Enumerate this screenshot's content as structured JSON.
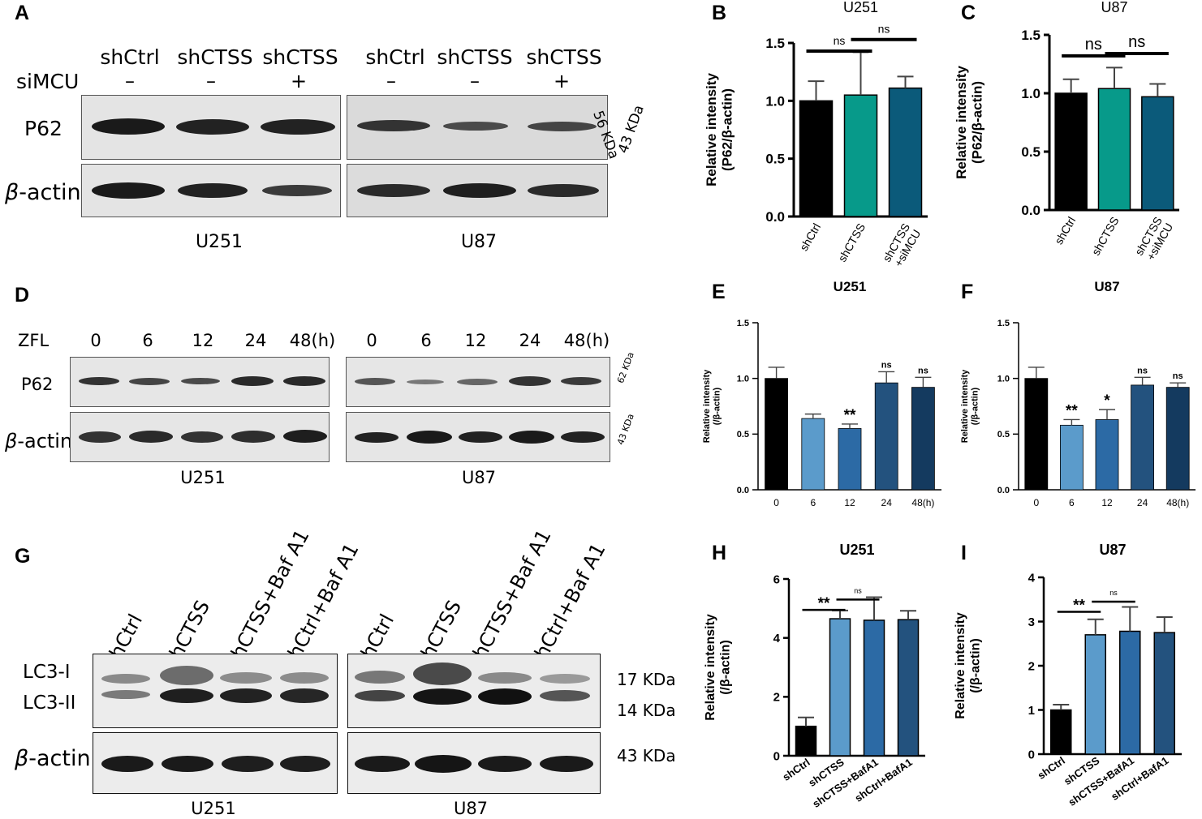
{
  "panel_labels": [
    "A",
    "B",
    "C",
    "D",
    "E",
    "F",
    "G",
    "H",
    "I"
  ],
  "blotA": {
    "lanes_u251": [
      "shCtrl",
      "shCTSS",
      "shCTSS"
    ],
    "lanes_u87": [
      "shCtrl",
      "shCTSS",
      "shCTSS"
    ],
    "simcu_label": "siMCU",
    "simcu_signs": [
      "–",
      "–",
      "+",
      "–",
      "–",
      "+"
    ],
    "row_labels": [
      "P62",
      "β-actin"
    ],
    "beta_symbol": "β",
    "beta_suffix": "-actin",
    "sizes": [
      "56 KDa",
      "43 KDa"
    ],
    "cell_lines": [
      "U251",
      "U87"
    ]
  },
  "blotD": {
    "row_label_zfl": "ZFL",
    "times_u251": [
      "0",
      "6",
      "12",
      "24",
      "48(h)"
    ],
    "times_u87": [
      "0",
      "6",
      "12",
      "24",
      "48(h)"
    ],
    "row_labels": [
      "P62",
      "β-actin"
    ],
    "beta_symbol": "β",
    "beta_suffix": "-actin",
    "sizes": [
      "62 KDa",
      "43 KDa"
    ],
    "cell_lines": [
      "U251",
      "U87"
    ]
  },
  "blotG": {
    "lanes_u251": [
      "shCtrl",
      "shCTSS",
      "shCTSS+Baf A1",
      "shCtrl+Baf A1"
    ],
    "lanes_u87": [
      "shCtrl",
      "shCTSS",
      "shCTSS+Baf A1",
      "shCtrl+Baf A1"
    ],
    "row_labels": [
      "LC3-I",
      "LC3-II"
    ],
    "beta_symbol": "β",
    "beta_suffix": "-actin",
    "sizes": [
      "17 KDa",
      "14 KDa",
      "43 KDa"
    ],
    "cell_lines": [
      "U251",
      "U87"
    ]
  },
  "colors": {
    "black": "#000000",
    "teal": "#079a8a",
    "darkteal": "#0b5a7a",
    "blue1": "#5b9bcb",
    "blue2": "#2c6aa5",
    "navy1": "#23527e",
    "navy2": "#143a5f",
    "blot_bg": "#e8e8e8"
  },
  "chart_data": [
    {
      "id": "B",
      "type": "bar",
      "title": "U251",
      "ylabel": [
        "Relative intensity",
        "(P62/β-actin)"
      ],
      "ylim": [
        0,
        1.5
      ],
      "yticks": [
        "0.0",
        "0.5",
        "1.0",
        "1.5"
      ],
      "categories": [
        "shCtrl",
        "shCTSS",
        "shCTSS +siMCU"
      ],
      "values": [
        1.0,
        1.05,
        1.11
      ],
      "errors": [
        0.17,
        0.37,
        0.1
      ],
      "bar_colors": [
        "#000000",
        "#079a8a",
        "#0b5a7a"
      ],
      "brackets": [
        {
          "from": 0,
          "to": 1,
          "label": "ns"
        },
        {
          "from": 1,
          "to": 2,
          "label": "ns"
        }
      ],
      "annotations": [
        "",
        "",
        ""
      ]
    },
    {
      "id": "C",
      "type": "bar",
      "title": "U87",
      "ylabel": [
        "Relative intensity",
        "(P62/β-actin)"
      ],
      "ylim": [
        0,
        1.5
      ],
      "yticks": [
        "0.0",
        "0.5",
        "1.0",
        "1.5"
      ],
      "categories": [
        "shCtrl",
        "shCTSS",
        "shCTSS +siMCU"
      ],
      "values": [
        1.0,
        1.04,
        0.97
      ],
      "errors": [
        0.12,
        0.18,
        0.11
      ],
      "bar_colors": [
        "#000000",
        "#079a8a",
        "#0b5a7a"
      ],
      "brackets": [
        {
          "from": 0,
          "to": 1,
          "label": "ns"
        },
        {
          "from": 1,
          "to": 2,
          "label": "ns"
        }
      ],
      "annotations": [
        "",
        "",
        ""
      ]
    },
    {
      "id": "E",
      "type": "bar",
      "title": "U251",
      "ylabel": [
        "Relative intensity",
        "(/β-actin)"
      ],
      "ylim": [
        0,
        1.5
      ],
      "yticks": [
        "0.0",
        "0.5",
        "1.0",
        "1.5"
      ],
      "categories": [
        "0",
        "6",
        "12",
        "24",
        "48(h)"
      ],
      "values": [
        1.0,
        0.64,
        0.55,
        0.96,
        0.92
      ],
      "errors": [
        0.1,
        0.04,
        0.04,
        0.1,
        0.09
      ],
      "bar_colors": [
        "#000000",
        "#5b9bcb",
        "#2c6aa5",
        "#23527e",
        "#143a5f"
      ],
      "brackets": [],
      "annotations": [
        "",
        "",
        "**",
        "ns",
        "ns"
      ]
    },
    {
      "id": "F",
      "type": "bar",
      "title": "U87",
      "ylabel": [
        "Relative intensity",
        "(/β-actin)"
      ],
      "ylim": [
        0,
        1.5
      ],
      "yticks": [
        "0.0",
        "0.5",
        "1.0",
        "1.5"
      ],
      "categories": [
        "0",
        "6",
        "12",
        "24",
        "48(h)"
      ],
      "values": [
        1.0,
        0.58,
        0.63,
        0.94,
        0.92
      ],
      "errors": [
        0.1,
        0.05,
        0.09,
        0.07,
        0.04
      ],
      "bar_colors": [
        "#000000",
        "#5b9bcb",
        "#2c6aa5",
        "#23527e",
        "#143a5f"
      ],
      "brackets": [],
      "annotations": [
        "",
        "**",
        "*",
        "ns",
        "ns"
      ]
    },
    {
      "id": "H",
      "type": "bar",
      "title": "U251",
      "ylabel": [
        "Relative intensity",
        "(/β-actin)"
      ],
      "ylim": [
        0,
        6
      ],
      "yticks": [
        "0",
        "2",
        "4",
        "6"
      ],
      "categories": [
        "shCtrl",
        "shCTSS",
        "shCTSS+BafA1",
        "shCtrl+BafA1"
      ],
      "values": [
        1.0,
        4.65,
        4.6,
        4.62
      ],
      "errors": [
        0.3,
        0.28,
        0.78,
        0.3
      ],
      "bar_colors": [
        "#000000",
        "#5b9bcb",
        "#2c6aa5",
        "#23527e"
      ],
      "brackets": [
        {
          "from": 0,
          "to": 1,
          "label": "**"
        },
        {
          "from": 1,
          "to": 2,
          "label": "ns"
        }
      ],
      "annotations": [
        "",
        "",
        "",
        ""
      ]
    },
    {
      "id": "I",
      "type": "bar",
      "title": "U87",
      "ylabel": [
        "Relative intensity",
        "(/β-actin)"
      ],
      "ylim": [
        0,
        4
      ],
      "yticks": [
        "0",
        "1",
        "2",
        "3",
        "4"
      ],
      "categories": [
        "shCtrl",
        "shCTSS",
        "shCTSS+BafA1",
        "shCtrl+BafA1"
      ],
      "values": [
        1.0,
        2.7,
        2.78,
        2.75
      ],
      "errors": [
        0.12,
        0.35,
        0.55,
        0.35
      ],
      "bar_colors": [
        "#000000",
        "#5b9bcb",
        "#2c6aa5",
        "#23527e"
      ],
      "brackets": [
        {
          "from": 0,
          "to": 1,
          "label": "**"
        },
        {
          "from": 1,
          "to": 2,
          "label": "ns"
        }
      ],
      "annotations": [
        "",
        "",
        "",
        ""
      ]
    }
  ]
}
